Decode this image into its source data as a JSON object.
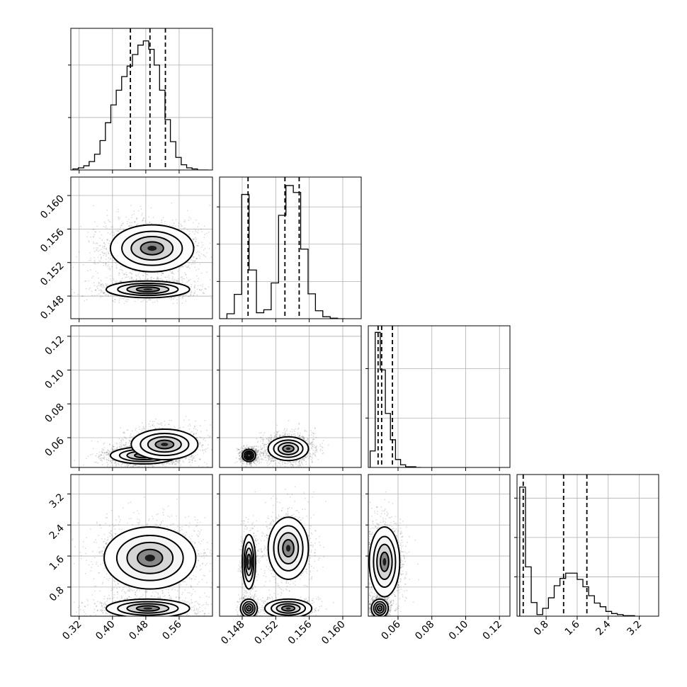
{
  "chart_data": {
    "type": "corner",
    "parameters": [
      {
        "range": [
          0.3,
          0.64
        ],
        "ticks": [
          0.32,
          0.4,
          0.48,
          0.56
        ],
        "tick_labels": [
          "0.32",
          "0.40",
          "0.48",
          "0.56"
        ]
      },
      {
        "range": [
          0.1453,
          0.1622
        ],
        "ticks": [
          0.148,
          0.152,
          0.156,
          0.16
        ],
        "tick_labels": [
          "0.148",
          "0.152",
          "0.156",
          "0.160"
        ]
      },
      {
        "range": [
          0.0424,
          0.1262
        ],
        "ticks": [
          0.06,
          0.08,
          0.1,
          0.12
        ],
        "tick_labels": [
          "0.06",
          "0.08",
          "0.10",
          "0.12"
        ]
      },
      {
        "range": [
          0.05,
          3.7
        ],
        "ticks": [
          0.8,
          1.6,
          2.4,
          3.2
        ],
        "tick_labels": [
          "0.8",
          "1.6",
          "2.4",
          "3.2"
        ]
      }
    ],
    "grid": true,
    "histograms": [
      {
        "bins": [
          0.305,
          0.318,
          0.331,
          0.344,
          0.357,
          0.37,
          0.383,
          0.396,
          0.409,
          0.422,
          0.435,
          0.448,
          0.461,
          0.474,
          0.487,
          0.5,
          0.513,
          0.526,
          0.539,
          0.552,
          0.565,
          0.578,
          0.591,
          0.604,
          0.617,
          0.63
        ],
        "counts": [
          1,
          2,
          4,
          8,
          15,
          28,
          45,
          62,
          76,
          89,
          99,
          110,
          119,
          123,
          115,
          100,
          76,
          48,
          27,
          12,
          5,
          2,
          1,
          0,
          0
        ],
        "ymax": 135,
        "quantiles": [
          0.443,
          0.49,
          0.527
        ]
      },
      {
        "bins": [
          0.1453,
          0.14618,
          0.14706,
          0.14794,
          0.14882,
          0.1497,
          0.15058,
          0.15146,
          0.15234,
          0.15322,
          0.1541,
          0.15498,
          0.15586,
          0.15674,
          0.15762,
          0.1585,
          0.15938,
          0.16026
        ],
        "counts": [
          0,
          10,
          49,
          250,
          98,
          12,
          18,
          72,
          208,
          268,
          254,
          140,
          50,
          16,
          4,
          1,
          0
        ],
        "ymax": 285,
        "quantiles": [
          0.1487,
          0.1531,
          0.1548
        ]
      },
      {
        "bins": [
          0.0435,
          0.0465,
          0.0495,
          0.0525,
          0.0555,
          0.0585,
          0.0615,
          0.0645,
          0.0675,
          0.0705,
          0.0735
        ],
        "counts": [
          25,
          205,
          148,
          82,
          42,
          12,
          4,
          1,
          1,
          0
        ],
        "ymax": 215,
        "quantiles": [
          0.0482,
          0.0503,
          0.0567
        ]
      },
      {
        "bins": [
          0.12,
          0.268,
          0.416,
          0.564,
          0.712,
          0.86,
          1.008,
          1.156,
          1.304,
          1.452,
          1.6,
          1.748,
          1.896,
          2.044,
          2.192,
          2.34,
          2.488,
          2.636,
          2.784,
          2.932,
          3.08
        ],
        "counts": [
          246,
          94,
          26,
          3,
          15,
          35,
          58,
          72,
          82,
          82,
          70,
          56,
          39,
          25,
          18,
          9,
          5,
          3,
          1,
          1
        ],
        "ymax": 270,
        "quantiles": [
          0.21,
          1.25,
          1.85
        ]
      }
    ],
    "pairs": [
      {
        "i": 1,
        "j": 0,
        "density": "shaded",
        "points": 2600,
        "modes": [
          {
            "w": 0.62,
            "cx": 0.495,
            "cy": 0.1537,
            "sx": 0.05,
            "sy": 0.0014
          },
          {
            "w": 0.38,
            "cx": 0.485,
            "cy": 0.1488,
            "sx": 0.05,
            "sy": 0.0005
          }
        ]
      },
      {
        "i": 2,
        "j": 0,
        "density": "shaded",
        "points": 2600,
        "modes": [
          {
            "w": 0.6,
            "cx": 0.475,
            "cy": 0.0495,
            "sx": 0.04,
            "sy": 0.0025
          },
          {
            "w": 0.4,
            "cx": 0.525,
            "cy": 0.056,
            "sx": 0.04,
            "sy": 0.0045
          }
        ]
      },
      {
        "i": 2,
        "j": 1,
        "density": "shaded",
        "points": 2600,
        "modes": [
          {
            "w": 0.38,
            "cx": 0.1488,
            "cy": 0.0495,
            "sx": 0.0004,
            "sy": 0.0018
          },
          {
            "w": 0.62,
            "cx": 0.1535,
            "cy": 0.0535,
            "sx": 0.0012,
            "sy": 0.0035
          }
        ]
      },
      {
        "i": 3,
        "j": 0,
        "density": "shaded",
        "points": 2600,
        "modes": [
          {
            "w": 0.42,
            "cx": 0.485,
            "cy": 0.25,
            "sx": 0.05,
            "sy": 0.12
          },
          {
            "w": 0.58,
            "cx": 0.49,
            "cy": 1.55,
            "sx": 0.055,
            "sy": 0.4
          }
        ]
      },
      {
        "i": 3,
        "j": 1,
        "density": "shaded",
        "points": 2600,
        "modes": [
          {
            "w": 0.15,
            "cx": 0.1488,
            "cy": 0.25,
            "sx": 0.0005,
            "sy": 0.12
          },
          {
            "w": 0.23,
            "cx": 0.1488,
            "cy": 1.45,
            "sx": 0.0004,
            "sy": 0.35
          },
          {
            "w": 0.25,
            "cx": 0.1535,
            "cy": 0.25,
            "sx": 0.0014,
            "sy": 0.12
          },
          {
            "w": 0.37,
            "cx": 0.1535,
            "cy": 1.8,
            "sx": 0.0012,
            "sy": 0.4
          }
        ]
      },
      {
        "i": 3,
        "j": 2,
        "density": "shaded",
        "points": 2600,
        "modes": [
          {
            "w": 0.4,
            "cx": 0.0492,
            "cy": 0.25,
            "sx": 0.0025,
            "sy": 0.12
          },
          {
            "w": 0.6,
            "cx": 0.052,
            "cy": 1.45,
            "sx": 0.0045,
            "sy": 0.45
          }
        ]
      }
    ],
    "contour_levels_fraction": [
      0.118,
      0.393,
      0.675,
      0.864
    ]
  }
}
